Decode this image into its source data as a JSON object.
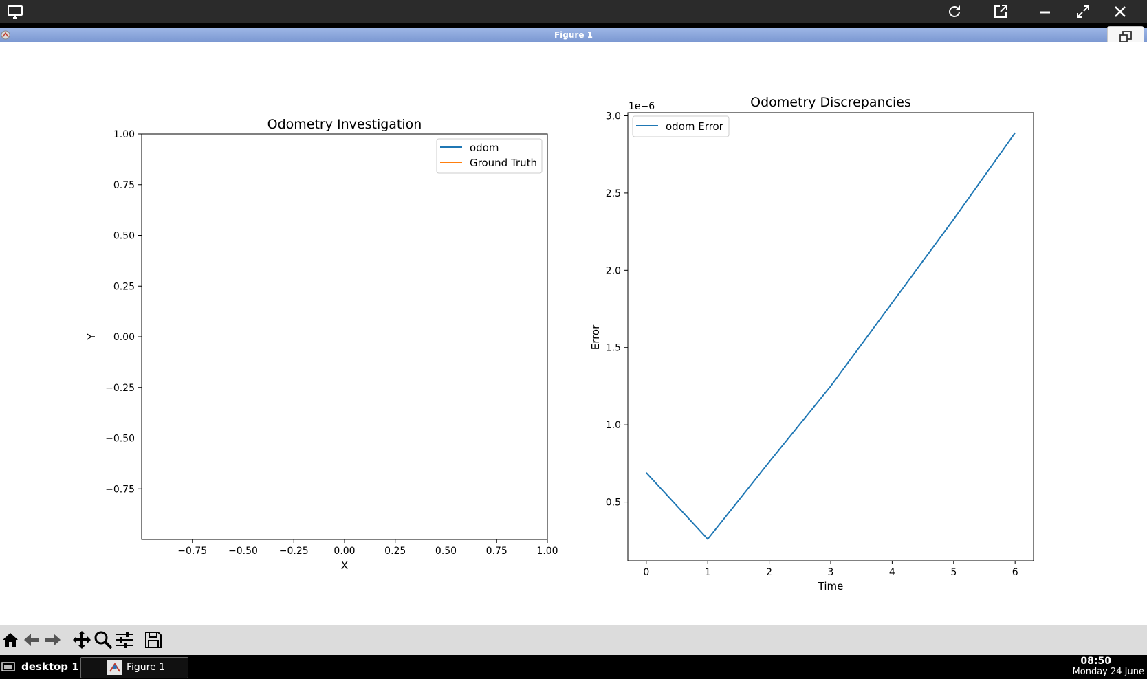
{
  "window": {
    "title": "Figure 1"
  },
  "top_bar": {
    "icons": [
      "monitor-icon",
      "refresh-icon",
      "open-external-icon",
      "minimize-icon",
      "maximize-icon",
      "close-icon"
    ]
  },
  "toolbar": {
    "buttons": [
      "home-icon",
      "back-arrow-icon",
      "forward-arrow-icon",
      "pan-icon",
      "zoom-icon",
      "configure-subplots-icon",
      "save-icon"
    ]
  },
  "taskbar": {
    "desktop": "desktop 1",
    "task": "Figure 1",
    "time": "08:50",
    "date": "Monday 24 June"
  },
  "chart_data": [
    {
      "type": "line",
      "title": "Odometry Investigation",
      "xlabel": "X",
      "ylabel": "Y",
      "xlim": [
        -1.0,
        1.0
      ],
      "ylim": [
        -1.0,
        1.0
      ],
      "xticks": [
        "−0.75",
        "−0.50",
        "−0.25",
        "0.00",
        "0.25",
        "0.50",
        "0.75",
        "1.00"
      ],
      "yticks": [
        "1.00",
        "0.75",
        "0.50",
        "0.25",
        "0.00",
        "−0.25",
        "−0.50",
        "−0.75"
      ],
      "legend_position": "top-right",
      "series": [
        {
          "name": "odom",
          "color": "#1f77b4",
          "x": [],
          "y": []
        },
        {
          "name": "Ground Truth",
          "color": "#ff7f0e",
          "x": [],
          "y": []
        }
      ]
    },
    {
      "type": "line",
      "title": "Odometry Discrepancies",
      "xlabel": "Time",
      "ylabel": "Error",
      "offset_text": "1e−6",
      "xlim": [
        -0.3,
        6.3
      ],
      "ylim": [
        0.12,
        3.02
      ],
      "xticks": [
        "0",
        "1",
        "2",
        "3",
        "4",
        "5",
        "6"
      ],
      "yticks": [
        "0.5",
        "1.0",
        "1.5",
        "2.0",
        "2.5",
        "3.0"
      ],
      "legend_position": "top-left",
      "series": [
        {
          "name": "odom Error",
          "color": "#1f77b4",
          "x": [
            0,
            1,
            2,
            3,
            4,
            5,
            6
          ],
          "y": [
            0.69,
            0.26,
            0.76,
            1.25,
            1.79,
            2.33,
            2.89
          ]
        }
      ]
    }
  ]
}
